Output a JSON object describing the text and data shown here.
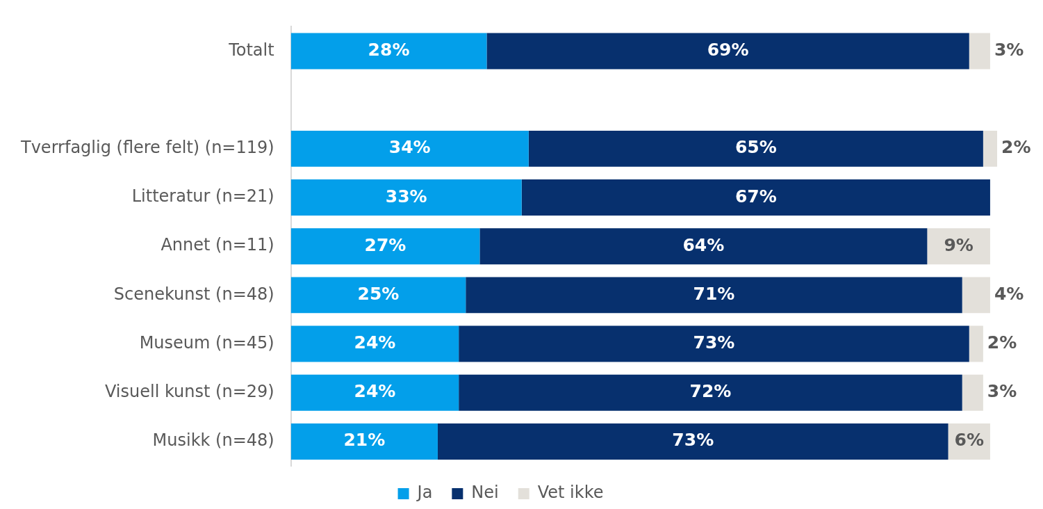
{
  "chart_data": {
    "type": "bar",
    "orientation": "horizontal",
    "stacked": true,
    "legend": "bottom",
    "grid": false,
    "categories": [
      "Totalt",
      null,
      "Tverrfaglig (flere felt) (n=119)",
      "Litteratur (n=21)",
      "Annet (n=11)",
      "Scenekunst (n=48)",
      "Museum (n=45)",
      "Visuell kunst (n=29)",
      "Musikk (n=48)"
    ],
    "series": [
      {
        "name": "Ja",
        "color": "#039fea",
        "values": [
          28,
          null,
          34,
          33,
          27,
          25,
          24,
          24,
          21
        ],
        "value_labels": [
          "28%",
          null,
          "34%",
          "33%",
          "27%",
          "25%",
          "24%",
          "24%",
          "21%"
        ]
      },
      {
        "name": "Nei",
        "color": "#07306e",
        "values": [
          69,
          null,
          65,
          67,
          64,
          71,
          73,
          72,
          73
        ],
        "value_labels": [
          "69%",
          null,
          "65%",
          "67%",
          "64%",
          "71%",
          "73%",
          "72%",
          "73%"
        ]
      },
      {
        "name": "Vet ikke",
        "color": "#e3e0da",
        "values": [
          3,
          null,
          2,
          null,
          9,
          4,
          2,
          3,
          6
        ],
        "value_labels": [
          "3%",
          null,
          "2%",
          null,
          "9%",
          "4%",
          "2%",
          "3%",
          "6%"
        ]
      }
    ]
  }
}
